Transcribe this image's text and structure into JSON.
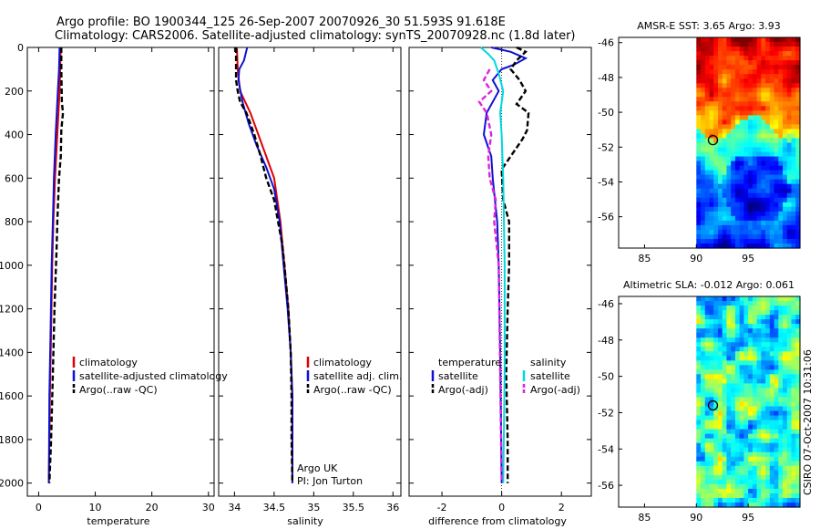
{
  "title_line1": "Argo profile: BO 1900344_125 26-Sep-2007 20070926_30 51.593S 91.618E",
  "title_line2": "Climatology: CARS2006. Satellite-adjusted climatology: synTS_20070928.nc (1.8d later)",
  "side_label": "CSIRO 07-Oct-2007 10:31:06",
  "colors": {
    "climatology": "#e00000",
    "satellite": "#1010d0",
    "argo": "#000000",
    "sat_diff": "#00d8e0",
    "argo_adj_s": "#e020e0",
    "axis": "#000000"
  },
  "chart_data": [
    {
      "type": "line",
      "id": "temperature",
      "xlabel": "temperature",
      "xlim": [
        -2,
        31
      ],
      "ylim": [
        0,
        2060
      ],
      "xticks": [
        "0",
        "10",
        "20",
        "30"
      ],
      "yticks": [
        "0",
        "200",
        "400",
        "600",
        "800",
        "1000",
        "1200",
        "1400",
        "1600",
        "1800",
        "2000"
      ],
      "legend": [
        "climatology",
        "satellite-adjusted climatology",
        "Argo(..raw -QC)"
      ],
      "series": [
        {
          "name": "climatology",
          "style": "solid",
          "color": "#e00000",
          "points": [
            [
              3.9,
              0
            ],
            [
              3.8,
              100
            ],
            [
              3.7,
              200
            ],
            [
              3.3,
              400
            ],
            [
              2.9,
              600
            ],
            [
              2.6,
              800
            ],
            [
              2.4,
              1000
            ],
            [
              2.2,
              1300
            ],
            [
              2.0,
              1600
            ],
            [
              1.8,
              2000
            ]
          ]
        },
        {
          "name": "satellite-adjusted climatology",
          "style": "solid",
          "color": "#1010d0",
          "points": [
            [
              3.7,
              0
            ],
            [
              3.6,
              100
            ],
            [
              3.4,
              200
            ],
            [
              3.0,
              400
            ],
            [
              2.7,
              600
            ],
            [
              2.5,
              800
            ],
            [
              2.3,
              1000
            ],
            [
              2.1,
              1300
            ],
            [
              1.9,
              1600
            ],
            [
              1.8,
              2000
            ]
          ]
        },
        {
          "name": "Argo(..raw -QC)",
          "style": "dash",
          "color": "#000000",
          "points": [
            [
              4.0,
              0
            ],
            [
              4.0,
              100
            ],
            [
              4.1,
              250
            ],
            [
              4.3,
              300
            ],
            [
              4.0,
              380
            ],
            [
              3.9,
              500
            ],
            [
              3.6,
              600
            ],
            [
              3.3,
              800
            ],
            [
              3.2,
              900
            ],
            [
              2.8,
              1200
            ],
            [
              2.5,
              1500
            ],
            [
              2.2,
              1800
            ],
            [
              1.9,
              2000
            ]
          ]
        }
      ]
    },
    {
      "type": "line",
      "id": "salinity",
      "xlabel": "salinity",
      "xlim": [
        33.8,
        36.1
      ],
      "ylim": [
        0,
        2060
      ],
      "xticks": [
        "34",
        "34.5",
        "35",
        "35.5",
        "36"
      ],
      "legend": [
        "climatology",
        "satellite adj. clim.",
        "Argo(..raw -QC)"
      ],
      "annotation": [
        "Argo UK",
        "PI: Jon Turton"
      ],
      "series": [
        {
          "name": "climatology",
          "style": "solid",
          "color": "#e00000",
          "points": [
            [
              34.03,
              0
            ],
            [
              34.04,
              100
            ],
            [
              34.07,
              200
            ],
            [
              34.2,
              300
            ],
            [
              34.3,
              400
            ],
            [
              34.4,
              500
            ],
            [
              34.5,
              600
            ],
            [
              34.58,
              800
            ],
            [
              34.63,
              1000
            ],
            [
              34.68,
              1200
            ],
            [
              34.71,
              1400
            ],
            [
              34.73,
              1600
            ],
            [
              34.73,
              2000
            ]
          ]
        },
        {
          "name": "satellite adj. clim.",
          "style": "solid",
          "color": "#1010d0",
          "points": [
            [
              34.16,
              0
            ],
            [
              34.12,
              60
            ],
            [
              34.06,
              100
            ],
            [
              34.05,
              150
            ],
            [
              34.1,
              250
            ],
            [
              34.18,
              350
            ],
            [
              34.28,
              450
            ],
            [
              34.4,
              550
            ],
            [
              34.5,
              650
            ],
            [
              34.57,
              800
            ],
            [
              34.62,
              1000
            ],
            [
              34.67,
              1200
            ],
            [
              34.71,
              1400
            ],
            [
              34.73,
              1600
            ],
            [
              34.73,
              2000
            ]
          ]
        },
        {
          "name": "Argo(..raw -QC)",
          "style": "dash",
          "color": "#000000",
          "points": [
            [
              34.02,
              0
            ],
            [
              34.02,
              150
            ],
            [
              34.04,
              200
            ],
            [
              34.07,
              250
            ],
            [
              34.15,
              300
            ],
            [
              34.2,
              350
            ],
            [
              34.25,
              400
            ],
            [
              34.33,
              500
            ],
            [
              34.4,
              600
            ],
            [
              34.5,
              700
            ],
            [
              34.55,
              800
            ],
            [
              34.6,
              900
            ],
            [
              34.63,
              1000
            ],
            [
              34.68,
              1200
            ],
            [
              34.71,
              1400
            ],
            [
              34.72,
              1600
            ],
            [
              34.72,
              1800
            ],
            [
              34.73,
              2000
            ]
          ]
        }
      ]
    },
    {
      "type": "line",
      "id": "difference",
      "xlabel": "difference from climatology",
      "xlim": [
        -3.1,
        3.0
      ],
      "ylim": [
        0,
        2060
      ],
      "xticks": [
        "-2",
        "0",
        "2"
      ],
      "legend_left": {
        "heading": "temperature",
        "items": [
          "satellite",
          "Argo(-adj)"
        ]
      },
      "legend_right": {
        "heading": "salinity",
        "items": [
          "satellite",
          "Argo(-adj)"
        ]
      },
      "series": [
        {
          "name": "temperature satellite",
          "style": "solid",
          "color": "#1010d0",
          "points": [
            [
              -0.35,
              0
            ],
            [
              0.3,
              20
            ],
            [
              0.8,
              50
            ],
            [
              0.4,
              80
            ],
            [
              0.0,
              100
            ],
            [
              -0.3,
              150
            ],
            [
              -0.1,
              200
            ],
            [
              -0.5,
              300
            ],
            [
              -0.6,
              400
            ],
            [
              -0.35,
              500
            ],
            [
              -0.3,
              600
            ],
            [
              -0.15,
              800
            ],
            [
              -0.1,
              1000
            ],
            [
              -0.05,
              1400
            ],
            [
              0.0,
              2000
            ]
          ]
        },
        {
          "name": "temperature Argo(-adj)",
          "style": "dash",
          "color": "#000000",
          "points": [
            [
              0.5,
              0
            ],
            [
              0.8,
              20
            ],
            [
              0.5,
              60
            ],
            [
              0.3,
              100
            ],
            [
              0.6,
              150
            ],
            [
              0.8,
              200
            ],
            [
              0.5,
              260
            ],
            [
              0.9,
              300
            ],
            [
              0.85,
              380
            ],
            [
              0.7,
              420
            ],
            [
              0.3,
              500
            ],
            [
              0.0,
              560
            ],
            [
              0.05,
              700
            ],
            [
              0.25,
              800
            ],
            [
              0.25,
              1000
            ],
            [
              0.2,
              1200
            ],
            [
              0.15,
              1500
            ],
            [
              0.2,
              1800
            ],
            [
              0.2,
              2000
            ]
          ]
        },
        {
          "name": "salinity satellite",
          "style": "solid",
          "color": "#00d8e0",
          "points": [
            [
              -0.7,
              0
            ],
            [
              -0.45,
              30
            ],
            [
              -0.25,
              60
            ],
            [
              -0.1,
              120
            ],
            [
              0.05,
              200
            ],
            [
              -0.05,
              300
            ],
            [
              0.0,
              400
            ],
            [
              0.05,
              600
            ],
            [
              0.1,
              1000
            ],
            [
              0.1,
              1500
            ],
            [
              0.05,
              2000
            ]
          ]
        },
        {
          "name": "salinity Argo(-adj)",
          "style": "dash",
          "color": "#e020e0",
          "points": [
            [
              -0.4,
              100
            ],
            [
              -0.6,
              150
            ],
            [
              -0.35,
              200
            ],
            [
              -0.75,
              250
            ],
            [
              -0.5,
              300
            ],
            [
              -0.35,
              400
            ],
            [
              -0.45,
              500
            ],
            [
              -0.4,
              600
            ],
            [
              -0.2,
              700
            ],
            [
              -0.25,
              800
            ],
            [
              -0.1,
              1000
            ],
            [
              -0.05,
              1500
            ],
            [
              0.0,
              2000
            ]
          ]
        }
      ]
    }
  ],
  "maps": [
    {
      "id": "sst",
      "title": "AMSR-E SST: 3.65 Argo: 3.93",
      "xticks": [
        "85",
        "90",
        "95"
      ],
      "yticks": [
        "-46",
        "-48",
        "-50",
        "-52",
        "-54",
        "-56"
      ],
      "lon_range": [
        82.5,
        100
      ],
      "lat_range": [
        -57.8,
        -45.7
      ],
      "data_lon_start": 90,
      "marker": {
        "lon": 91.6,
        "lat": -51.6
      }
    },
    {
      "id": "sla",
      "title": "Altimetric SLA: -0.012 Argo: 0.061",
      "xticks": [
        "85",
        "90",
        "95"
      ],
      "yticks": [
        "-46",
        "-48",
        "-50",
        "-52",
        "-54",
        "-56"
      ],
      "lon_range": [
        82.5,
        100
      ],
      "lat_range": [
        -57.2,
        -45.6
      ],
      "data_lon_start": 90,
      "marker": {
        "lon": 91.6,
        "lat": -51.6
      }
    }
  ]
}
